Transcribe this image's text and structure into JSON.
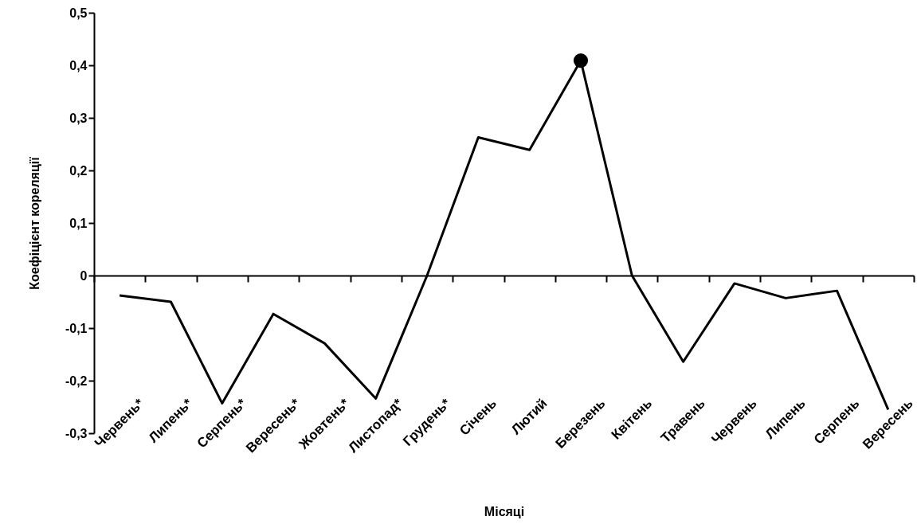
{
  "chart_data": {
    "type": "line",
    "xlabel": "Місяці",
    "ylabel": "Коефіцієнт кореляції",
    "categories": [
      "Червень*",
      "Липень*",
      "Серпень*",
      "Вересень*",
      "Жовтень*",
      "Листопад*",
      "Грудень*",
      "Січень",
      "Лютий",
      "Березень",
      "Квітень",
      "Травень",
      "Червень",
      "Липень",
      "Серпень",
      "Вересень"
    ],
    "series": [
      {
        "color": "#000000",
        "values": [
          -0.038,
          -0.05,
          -0.243,
          -0.073,
          -0.129,
          -0.234,
          0.0,
          0.263,
          0.239,
          0.409,
          0.0,
          -0.164,
          -0.015,
          -0.043,
          -0.029,
          -0.255
        ]
      },
      {
        "type": "scatter",
        "color": "#000000",
        "x": [
          "Березень"
        ],
        "values": [
          0.409
        ]
      }
    ],
    "ylim": [
      -0.3,
      0.5
    ],
    "yticks": [
      {
        "value": -0.3,
        "label": "-0,3"
      },
      {
        "value": -0.2,
        "label": "-0,2"
      },
      {
        "value": -0.1,
        "label": "-0,1"
      },
      0,
      {
        "value": 0.1,
        "label": "0,1"
      },
      {
        "value": 0.2,
        "label": "0,2"
      },
      {
        "value": 0.3,
        "label": "0,3"
      },
      {
        "value": 0.4,
        "label": "0,4"
      },
      {
        "value": 0.5,
        "label": "0,5"
      }
    ]
  }
}
